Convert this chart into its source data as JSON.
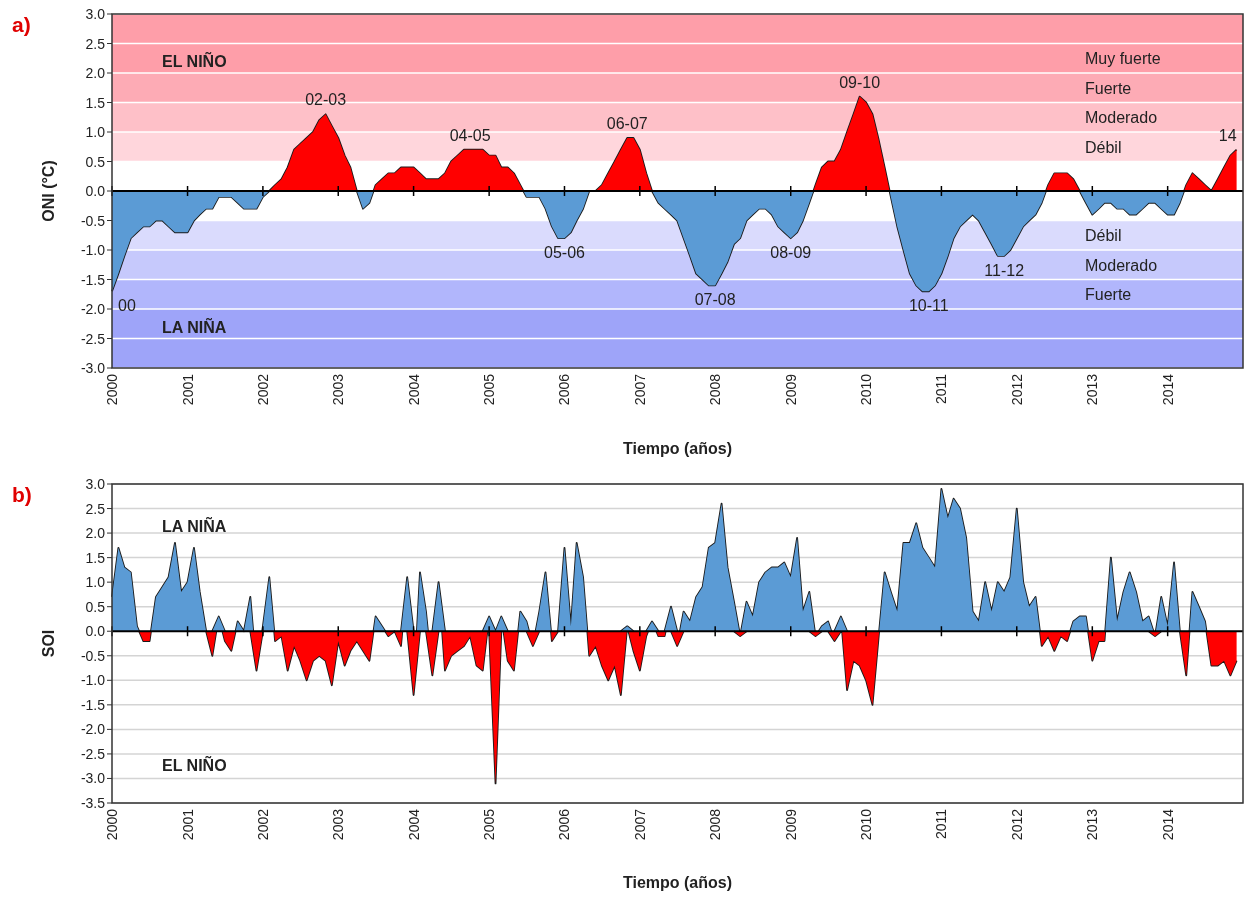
{
  "chart_data": [
    {
      "type": "area",
      "title": "a)",
      "xlabel": "Tiempo (años)",
      "ylabel": "ONI (°C)",
      "x": [
        "2000-01",
        "2000-02",
        "2000-03",
        "2000-04",
        "2000-05",
        "2000-06",
        "2000-07",
        "2000-08",
        "2000-09",
        "2000-10",
        "2000-11",
        "2000-12",
        "2001-01",
        "2001-02",
        "2001-03",
        "2001-04",
        "2001-05",
        "2001-06",
        "2001-07",
        "2001-08",
        "2001-09",
        "2001-10",
        "2001-11",
        "2001-12",
        "2002-01",
        "2002-02",
        "2002-03",
        "2002-04",
        "2002-05",
        "2002-06",
        "2002-07",
        "2002-08",
        "2002-09",
        "2002-10",
        "2002-11",
        "2002-12",
        "2003-01",
        "2003-02",
        "2003-03",
        "2003-04",
        "2003-05",
        "2003-06",
        "2003-07",
        "2003-08",
        "2003-09",
        "2003-10",
        "2003-11",
        "2003-12",
        "2004-01",
        "2004-02",
        "2004-03",
        "2004-04",
        "2004-05",
        "2004-06",
        "2004-07",
        "2004-08",
        "2004-09",
        "2004-10",
        "2004-11",
        "2004-12",
        "2005-01",
        "2005-02",
        "2005-03",
        "2005-04",
        "2005-05",
        "2005-06",
        "2005-07",
        "2005-08",
        "2005-09",
        "2005-10",
        "2005-11",
        "2005-12",
        "2006-01",
        "2006-02",
        "2006-03",
        "2006-04",
        "2006-05",
        "2006-06",
        "2006-07",
        "2006-08",
        "2006-09",
        "2006-10",
        "2006-11",
        "2006-12",
        "2007-01",
        "2007-02",
        "2007-03",
        "2007-04",
        "2007-05",
        "2007-06",
        "2007-07",
        "2007-08",
        "2007-09",
        "2007-10",
        "2007-11",
        "2007-12",
        "2008-01",
        "2008-02",
        "2008-03",
        "2008-04",
        "2008-05",
        "2008-06",
        "2008-07",
        "2008-08",
        "2008-09",
        "2008-10",
        "2008-11",
        "2008-12",
        "2009-01",
        "2009-02",
        "2009-03",
        "2009-04",
        "2009-05",
        "2009-06",
        "2009-07",
        "2009-08",
        "2009-09",
        "2009-10",
        "2009-11",
        "2009-12",
        "2010-01",
        "2010-02",
        "2010-03",
        "2010-04",
        "2010-05",
        "2010-06",
        "2010-07",
        "2010-08",
        "2010-09",
        "2010-10",
        "2010-11",
        "2010-12",
        "2011-01",
        "2011-02",
        "2011-03",
        "2011-04",
        "2011-05",
        "2011-06",
        "2011-07",
        "2011-08",
        "2011-09",
        "2011-10",
        "2011-11",
        "2011-12",
        "2012-01",
        "2012-02",
        "2012-03",
        "2012-04",
        "2012-05",
        "2012-06",
        "2012-07",
        "2012-08",
        "2012-09",
        "2012-10",
        "2012-11",
        "2012-12",
        "2013-01",
        "2013-02",
        "2013-03",
        "2013-04",
        "2013-05",
        "2013-06",
        "2013-07",
        "2013-08",
        "2013-09",
        "2013-10",
        "2013-11",
        "2013-12",
        "2014-01",
        "2014-02",
        "2014-03",
        "2014-04",
        "2014-05",
        "2014-06",
        "2014-07",
        "2014-08",
        "2014-09",
        "2014-10",
        "2014-11",
        "2014-12"
      ],
      "series": [
        {
          "color": "#ff0000",
          "values": [
            null,
            null,
            null,
            null,
            null,
            null,
            null,
            null,
            null,
            null,
            null,
            null,
            null,
            null,
            null,
            null,
            null,
            null,
            null,
            null,
            null,
            null,
            null,
            null,
            null,
            0.0,
            0.1,
            0.2,
            0.4,
            0.7,
            0.8,
            0.9,
            1.0,
            1.2,
            1.3,
            1.1,
            0.9,
            0.6,
            0.4,
            0.0,
            null,
            null,
            0.1,
            0.2,
            0.3,
            0.3,
            0.4,
            0.4,
            0.4,
            0.3,
            0.2,
            0.2,
            0.2,
            0.3,
            0.5,
            0.6,
            0.7,
            0.7,
            0.7,
            0.7,
            0.6,
            0.6,
            0.4,
            0.4,
            0.3,
            0.1,
            null,
            null,
            null,
            null,
            null,
            null,
            null,
            null,
            null,
            null,
            0.0,
            0.0,
            0.1,
            0.3,
            0.5,
            0.7,
            0.9,
            0.9,
            0.7,
            0.3,
            0.0,
            null,
            null,
            null,
            null,
            null,
            null,
            null,
            null,
            null,
            null,
            null,
            null,
            null,
            null,
            null,
            null,
            null,
            null,
            null,
            null,
            null,
            null,
            null,
            null,
            null,
            0.1,
            0.4,
            0.5,
            0.5,
            0.7,
            1.0,
            1.3,
            1.6,
            1.5,
            1.3,
            0.9,
            0.4,
            null,
            null,
            null,
            null,
            null,
            null,
            null,
            null,
            null,
            null,
            null,
            null,
            null,
            null,
            null,
            null,
            null,
            null,
            null,
            null,
            null,
            null,
            null,
            null,
            null,
            0.1,
            0.3,
            0.3,
            0.3,
            0.2,
            0.0,
            null,
            null,
            null,
            null,
            null,
            null,
            null,
            null,
            null,
            null,
            null,
            null,
            null,
            null,
            null,
            null,
            0.1,
            0.3,
            0.2,
            0.1,
            0.0,
            0.2,
            0.4,
            0.6,
            0.7
          ]
        },
        {
          "color": "#5b9bd5",
          "values": [
            -1.7,
            -1.4,
            -1.1,
            -0.8,
            -0.7,
            -0.6,
            -0.6,
            -0.5,
            -0.5,
            -0.6,
            -0.7,
            -0.7,
            -0.7,
            -0.5,
            -0.4,
            -0.3,
            -0.3,
            -0.1,
            -0.1,
            -0.1,
            -0.2,
            -0.3,
            -0.3,
            -0.3,
            -0.1,
            0.0,
            null,
            null,
            null,
            null,
            null,
            null,
            null,
            null,
            null,
            null,
            null,
            null,
            null,
            0.0,
            -0.3,
            -0.2,
            null,
            null,
            null,
            null,
            null,
            null,
            null,
            null,
            null,
            null,
            null,
            null,
            null,
            null,
            null,
            null,
            null,
            null,
            null,
            null,
            null,
            null,
            null,
            null,
            -0.1,
            -0.1,
            -0.1,
            -0.3,
            -0.6,
            -0.8,
            -0.8,
            -0.7,
            -0.5,
            -0.3,
            0.0,
            0.0,
            null,
            null,
            null,
            null,
            null,
            null,
            null,
            null,
            0.0,
            -0.2,
            -0.3,
            -0.4,
            -0.5,
            -0.8,
            -1.1,
            -1.4,
            -1.5,
            -1.6,
            -1.6,
            -1.4,
            -1.2,
            -0.9,
            -0.8,
            -0.5,
            -0.4,
            -0.3,
            -0.3,
            -0.4,
            -0.6,
            -0.7,
            -0.8,
            -0.7,
            -0.5,
            -0.2,
            null,
            null,
            null,
            null,
            null,
            null,
            null,
            null,
            null,
            null,
            null,
            null,
            -0.1,
            -0.6,
            -1.0,
            -1.4,
            -1.6,
            -1.7,
            -1.7,
            -1.6,
            -1.4,
            -1.1,
            -0.8,
            -0.6,
            -0.5,
            -0.4,
            -0.5,
            -0.7,
            -0.9,
            -1.1,
            -1.1,
            -1.0,
            -0.8,
            -0.6,
            -0.5,
            -0.4,
            -0.2,
            null,
            null,
            null,
            null,
            null,
            0.0,
            -0.2,
            -0.4,
            -0.3,
            -0.2,
            -0.2,
            -0.3,
            -0.3,
            -0.4,
            -0.4,
            -0.3,
            -0.2,
            -0.2,
            -0.3,
            -0.4,
            -0.4,
            -0.2,
            null,
            null,
            null,
            null,
            null,
            null,
            null,
            null,
            null
          ]
        }
      ],
      "xlim": [
        "2000",
        "2015"
      ],
      "xticks": [
        "2000",
        "2001",
        "2002",
        "2003",
        "2004",
        "2005",
        "2006",
        "2007",
        "2008",
        "2009",
        "2010",
        "2011",
        "2012",
        "2013",
        "2014"
      ],
      "ylim": [
        -3,
        3
      ],
      "yticks": [
        {
          "value": -3,
          "label": "-3.0"
        },
        {
          "value": -2.5,
          "label": "-2.5"
        },
        {
          "value": -2,
          "label": "-2.0"
        },
        {
          "value": -1.5,
          "label": "-1.5"
        },
        {
          "value": -1,
          "label": "-1.0"
        },
        {
          "value": -0.5,
          "label": "-0.5"
        },
        {
          "value": 0,
          "label": "0.0"
        },
        {
          "value": 0.5,
          "label": "0.5"
        },
        {
          "value": 1,
          "label": "1.0"
        },
        {
          "value": 1.5,
          "label": "1.5"
        },
        {
          "value": 2,
          "label": "2.0"
        },
        {
          "value": 2.5,
          "label": "2.5"
        },
        {
          "value": 3,
          "label": "3.0"
        }
      ],
      "grid": "y",
      "bands": [
        {
          "axis": "y",
          "from": 2.5,
          "to": 3.0,
          "color": "#fe9ea9"
        },
        {
          "axis": "y",
          "from": 2.0,
          "to": 2.5,
          "label": "Muy fuerte",
          "color": "#fe9ea9"
        },
        {
          "axis": "y",
          "from": 1.5,
          "to": 2.0,
          "label": "Fuerte",
          "color": "#fdabb5"
        },
        {
          "axis": "y",
          "from": 1.0,
          "to": 1.5,
          "label": "Moderado",
          "color": "#fec0c8"
        },
        {
          "axis": "y",
          "from": 0.5,
          "to": 1.0,
          "label": "Débil",
          "color": "#ffd6dc"
        },
        {
          "axis": "y",
          "from": -1.0,
          "to": -0.5,
          "label": "Débil",
          "color": "#dadbfd"
        },
        {
          "axis": "y",
          "from": -1.5,
          "to": -1.0,
          "label": "Moderado",
          "color": "#c6c9fc"
        },
        {
          "axis": "y",
          "from": -2.0,
          "to": -1.5,
          "label": "Fuerte",
          "color": "#b1b6fc"
        },
        {
          "axis": "y",
          "from": -3.0,
          "to": -2.0,
          "color": "#9ea4f9"
        }
      ],
      "annotations": [
        "EL NIÑO",
        "LA NIÑA",
        {
          "text": "00",
          "x": "2000-01",
          "y": -1.7
        },
        {
          "text": "02-03",
          "x": "2002-11",
          "y": 1.3
        },
        {
          "text": "04-05",
          "x": "2004-10",
          "y": 0.7
        },
        {
          "text": "05-06",
          "x": "2006-01",
          "y": -0.8
        },
        {
          "text": "06-07",
          "x": "2006-11",
          "y": 0.9
        },
        {
          "text": "07-08",
          "x": "2008-01",
          "y": -1.6
        },
        {
          "text": "08-09",
          "x": "2009-01",
          "y": -0.8
        },
        {
          "text": "09-10",
          "x": "2009-12",
          "y": 1.6
        },
        {
          "text": "10-11",
          "x": "2010-11",
          "y": -1.7
        },
        {
          "text": "11-12",
          "x": "2011-11",
          "y": -1.1
        },
        {
          "text": "14",
          "x": "2014-12",
          "y": 0.7
        }
      ]
    },
    {
      "type": "area",
      "title": "b)",
      "xlabel": "Tiempo (años)",
      "ylabel": "SOI",
      "x": [
        "2000-01",
        "2000-02",
        "2000-03",
        "2000-04",
        "2000-05",
        "2000-06",
        "2000-07",
        "2000-08",
        "2000-09",
        "2000-10",
        "2000-11",
        "2000-12",
        "2001-01",
        "2001-02",
        "2001-03",
        "2001-04",
        "2001-05",
        "2001-06",
        "2001-07",
        "2001-08",
        "2001-09",
        "2001-10",
        "2001-11",
        "2001-12",
        "2002-01",
        "2002-02",
        "2002-03",
        "2002-04",
        "2002-05",
        "2002-06",
        "2002-07",
        "2002-08",
        "2002-09",
        "2002-10",
        "2002-11",
        "2002-12",
        "2003-01",
        "2003-02",
        "2003-03",
        "2003-04",
        "2003-05",
        "2003-06",
        "2003-07",
        "2003-08",
        "2003-09",
        "2003-10",
        "2003-11",
        "2003-12",
        "2004-01",
        "2004-02",
        "2004-03",
        "2004-04",
        "2004-05",
        "2004-06",
        "2004-07",
        "2004-08",
        "2004-09",
        "2004-10",
        "2004-11",
        "2004-12",
        "2005-01",
        "2005-02",
        "2005-03",
        "2005-04",
        "2005-05",
        "2005-06",
        "2005-07",
        "2005-08",
        "2005-09",
        "2005-10",
        "2005-11",
        "2005-12",
        "2006-01",
        "2006-02",
        "2006-03",
        "2006-04",
        "2006-05",
        "2006-06",
        "2006-07",
        "2006-08",
        "2006-09",
        "2006-10",
        "2006-11",
        "2006-12",
        "2007-01",
        "2007-02",
        "2007-03",
        "2007-04",
        "2007-05",
        "2007-06",
        "2007-07",
        "2007-08",
        "2007-09",
        "2007-10",
        "2007-11",
        "2007-12",
        "2008-01",
        "2008-02",
        "2008-03",
        "2008-04",
        "2008-05",
        "2008-06",
        "2008-07",
        "2008-08",
        "2008-09",
        "2008-10",
        "2008-11",
        "2008-12",
        "2009-01",
        "2009-02",
        "2009-03",
        "2009-04",
        "2009-05",
        "2009-06",
        "2009-07",
        "2009-08",
        "2009-09",
        "2009-10",
        "2009-11",
        "2009-12",
        "2010-01",
        "2010-02",
        "2010-03",
        "2010-04",
        "2010-05",
        "2010-06",
        "2010-07",
        "2010-08",
        "2010-09",
        "2010-10",
        "2010-11",
        "2010-12",
        "2011-01",
        "2011-02",
        "2011-03",
        "2011-04",
        "2011-05",
        "2011-06",
        "2011-07",
        "2011-08",
        "2011-09",
        "2011-10",
        "2011-11",
        "2011-12",
        "2012-01",
        "2012-02",
        "2012-03",
        "2012-04",
        "2012-05",
        "2012-06",
        "2012-07",
        "2012-08",
        "2012-09",
        "2012-10",
        "2012-11",
        "2012-12",
        "2013-01",
        "2013-02",
        "2013-03",
        "2013-04",
        "2013-05",
        "2013-06",
        "2013-07",
        "2013-08",
        "2013-09",
        "2013-10",
        "2013-11",
        "2013-12",
        "2014-01",
        "2014-02",
        "2014-03",
        "2014-04",
        "2014-05",
        "2014-06",
        "2014-07",
        "2014-08",
        "2014-09",
        "2014-10",
        "2014-11",
        "2014-12"
      ],
      "series": [
        {
          "color": "#5b9bd5",
          "values": [
            0.7,
            1.7,
            1.3,
            1.2,
            0.1,
            null,
            null,
            0.7,
            0.9,
            1.1,
            1.8,
            0.8,
            1.0,
            1.7,
            0.8,
            0.0,
            null,
            0.3,
            null,
            null,
            0.2,
            0.0,
            0.7,
            null,
            0.1,
            1.1,
            null,
            null,
            null,
            null,
            null,
            null,
            null,
            null,
            null,
            null,
            null,
            null,
            null,
            null,
            null,
            null,
            0.3,
            0.1,
            null,
            null,
            null,
            1.1,
            null,
            1.2,
            0.4,
            null,
            1.0,
            null,
            null,
            null,
            null,
            null,
            null,
            null,
            0.3,
            null,
            0.3,
            null,
            null,
            0.4,
            0.2,
            null,
            0.4,
            1.2,
            null,
            0.0,
            1.7,
            0.1,
            1.8,
            1.1,
            null,
            null,
            null,
            null,
            null,
            null,
            0.1,
            null,
            null,
            null,
            0.2,
            null,
            null,
            0.5,
            null,
            0.4,
            0.2,
            0.7,
            0.9,
            1.7,
            1.8,
            2.6,
            1.3,
            0.6,
            null,
            0.6,
            0.3,
            1.0,
            1.2,
            1.3,
            1.3,
            1.4,
            1.1,
            1.9,
            0.4,
            0.8,
            null,
            0.1,
            0.2,
            null,
            0.3,
            null,
            null,
            null,
            null,
            null,
            null,
            1.2,
            0.8,
            0.4,
            1.8,
            1.8,
            2.2,
            1.7,
            1.5,
            1.3,
            2.9,
            2.3,
            2.7,
            2.5,
            1.9,
            0.4,
            0.2,
            1.0,
            0.4,
            1.0,
            0.8,
            1.1,
            2.5,
            1.0,
            0.5,
            0.7,
            null,
            null,
            null,
            null,
            null,
            0.2,
            0.3,
            0.3,
            null,
            null,
            null,
            1.5,
            0.2,
            0.8,
            1.2,
            0.8,
            0.2,
            0.3,
            null,
            0.7,
            0.1,
            1.4,
            0.0,
            null,
            0.8,
            0.5,
            0.2,
            null,
            null,
            null,
            null,
            null
          ]
        },
        {
          "color": "#ff0000",
          "values": [
            null,
            null,
            null,
            null,
            null,
            -0.2,
            -0.2,
            null,
            null,
            null,
            null,
            null,
            null,
            null,
            null,
            0.0,
            -0.5,
            null,
            -0.2,
            -0.4,
            null,
            null,
            null,
            -0.8,
            null,
            null,
            -0.2,
            -0.1,
            -0.8,
            -0.3,
            -0.6,
            -1.0,
            -0.6,
            -0.5,
            -0.6,
            -1.1,
            -0.2,
            -0.7,
            -0.4,
            -0.2,
            -0.4,
            -0.6,
            null,
            null,
            -0.1,
            0.0,
            -0.3,
            null,
            -1.3,
            null,
            null,
            -0.9,
            null,
            -0.8,
            -0.5,
            -0.4,
            -0.3,
            -0.1,
            -0.7,
            -0.8,
            null,
            -3.1,
            null,
            -0.6,
            -0.8,
            null,
            null,
            -0.3,
            null,
            null,
            -0.2,
            0.0,
            null,
            null,
            null,
            null,
            -0.5,
            -0.3,
            -0.7,
            -1.0,
            -0.7,
            -1.3,
            null,
            -0.4,
            -0.8,
            -0.1,
            null,
            -0.1,
            -0.1,
            null,
            -0.3,
            null,
            null,
            null,
            null,
            null,
            null,
            null,
            null,
            null,
            -0.1,
            null,
            null,
            null,
            null,
            null,
            null,
            null,
            null,
            null,
            null,
            null,
            -0.1,
            null,
            null,
            -0.2,
            null,
            -1.2,
            -0.6,
            -0.7,
            -1.0,
            -1.5,
            -0.2,
            null,
            null,
            null,
            null,
            null,
            null,
            null,
            null,
            null,
            null,
            null,
            null,
            null,
            null,
            null,
            null,
            null,
            null,
            null,
            null,
            null,
            null,
            null,
            null,
            null,
            -0.3,
            -0.1,
            -0.4,
            -0.1,
            -0.2,
            null,
            null,
            null,
            -0.6,
            -0.2,
            -0.2,
            null,
            null,
            null,
            null,
            null,
            null,
            null,
            -0.1,
            null,
            null,
            null,
            0.0,
            -0.9,
            null,
            null,
            null,
            -0.7,
            -0.7,
            -0.6,
            -0.9,
            -0.6
          ]
        }
      ],
      "xlim": [
        "2000",
        "2015"
      ],
      "xticks": [
        "2000",
        "2001",
        "2002",
        "2003",
        "2004",
        "2005",
        "2006",
        "2007",
        "2008",
        "2009",
        "2010",
        "2011",
        "2012",
        "2013",
        "2014"
      ],
      "ylim": [
        -3.5,
        3
      ],
      "yticks": [
        {
          "value": -3.5,
          "label": "-3.5"
        },
        {
          "value": -3,
          "label": "-3.0"
        },
        {
          "value": -2.5,
          "label": "-2.5"
        },
        {
          "value": -2,
          "label": "-2.0"
        },
        {
          "value": -1.5,
          "label": "-1.5"
        },
        {
          "value": -1,
          "label": "-1.0"
        },
        {
          "value": -0.5,
          "label": "-0.5"
        },
        {
          "value": 0,
          "label": "0.0"
        },
        {
          "value": 0.5,
          "label": "0.5"
        },
        {
          "value": 1,
          "label": "1.0"
        },
        {
          "value": 1.5,
          "label": "1.5"
        },
        {
          "value": 2,
          "label": "2.0"
        },
        {
          "value": 2.5,
          "label": "2.5"
        },
        {
          "value": 3,
          "label": "3.0"
        }
      ],
      "grid": "y",
      "annotations": [
        "LA NIÑA",
        "EL NIÑO"
      ]
    }
  ]
}
